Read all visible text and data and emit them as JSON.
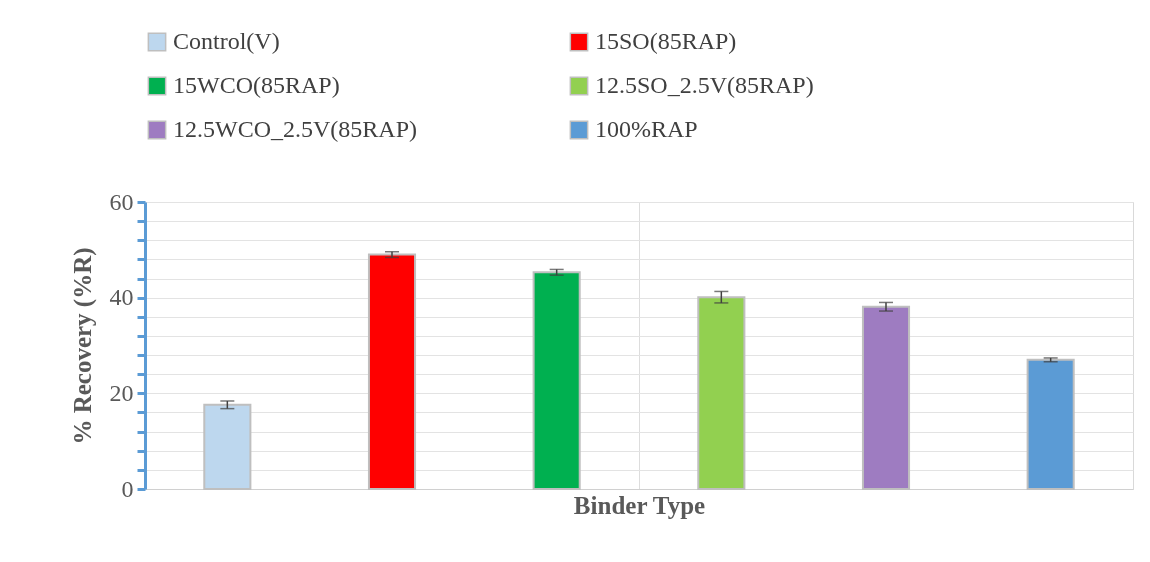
{
  "chart_data": {
    "type": "bar",
    "xlabel": "Binder Type",
    "ylabel": "% Recovery (%R)",
    "categories": [
      null
    ],
    "series": [
      {
        "name": "Control(V)",
        "color": "#bdd7ee",
        "values": [
          17.6
        ],
        "errors": [
          0.8
        ]
      },
      {
        "name": "15SO(85RAP)",
        "color": "#ff0000",
        "values": [
          49.0
        ],
        "errors": [
          0.6
        ]
      },
      {
        "name": "15WCO(85RAP)",
        "color": "#00b050",
        "values": [
          45.3
        ],
        "errors": [
          0.6
        ]
      },
      {
        "name": "12.5SO_2.5V(85RAP)",
        "color": "#92d050",
        "values": [
          40.1
        ],
        "errors": [
          1.2
        ]
      },
      {
        "name": "12.5WCO_2.5V(85RAP)",
        "color": "#9e7cc1",
        "values": [
          38.1
        ],
        "errors": [
          0.9
        ]
      },
      {
        "name": "100%RAP",
        "color": "#5b9bd5",
        "values": [
          27.0
        ],
        "errors": [
          0.4
        ]
      }
    ],
    "ylim": [
      0,
      60
    ],
    "yticks": [
      0,
      {
        "value": 4,
        "label": null
      },
      {
        "value": 8,
        "label": null
      },
      {
        "value": 12,
        "label": null
      },
      {
        "value": 16,
        "label": null
      },
      20,
      {
        "value": 24,
        "label": null
      },
      {
        "value": 28,
        "label": null
      },
      {
        "value": 32,
        "label": null
      },
      {
        "value": 36,
        "label": null
      },
      40,
      {
        "value": 44,
        "label": null
      },
      {
        "value": 48,
        "label": null
      },
      {
        "value": 52,
        "label": null
      },
      {
        "value": 56,
        "label": null
      },
      60
    ],
    "grid": true,
    "legend": "top",
    "tick_labels": "y"
  }
}
